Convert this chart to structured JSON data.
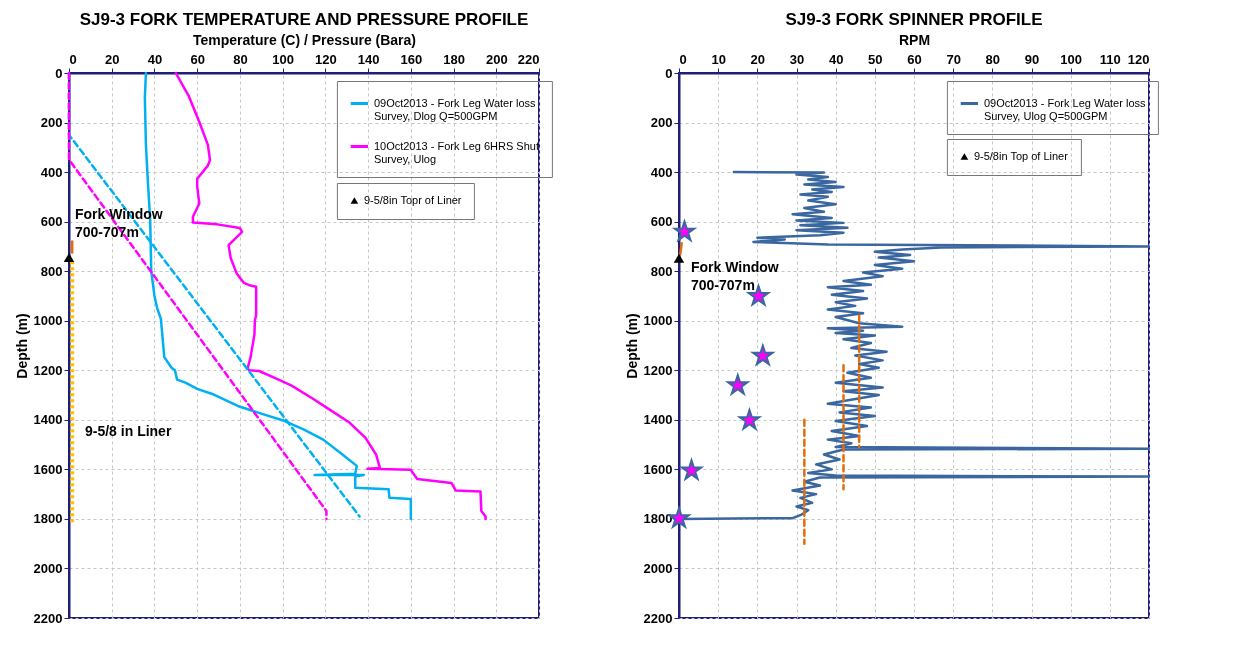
{
  "chart_data": [
    {
      "type": "line",
      "title": "SJ9-3 FORK TEMPERATURE AND PRESSURE PROFILE",
      "xlabel": "Temperature (C) / Pressure (Bara)",
      "ylabel": "Depth (m)",
      "xlim": [
        0,
        220
      ],
      "xticks": [
        0,
        20,
        40,
        60,
        80,
        100,
        120,
        140,
        160,
        180,
        200,
        220
      ],
      "ylim": [
        2200,
        0
      ],
      "yticks": [
        0,
        200,
        400,
        600,
        800,
        1000,
        1200,
        1400,
        1600,
        1800,
        2000,
        2200
      ],
      "grid": true,
      "legend": "top right",
      "series": [
        {
          "name": "09Oct2013 - Fork Leg Water loss Survey, Dlog Q=500GPM",
          "color": "#00b0f0",
          "x": [
            36,
            35.5,
            36,
            37,
            38,
            38.5,
            40,
            41.3,
            43,
            44.6,
            48,
            49.6,
            50.6,
            54.5,
            60,
            67.8,
            79,
            90,
            101,
            110,
            119,
            128,
            134.7,
            134,
            115,
            138,
            134,
            134,
            149.6,
            150,
            160,
            160
          ],
          "values": [
            0,
            100,
            290,
            450,
            595,
            800,
            900,
            950,
            992,
            1147,
            1190,
            1200,
            1238,
            1250,
            1275,
            1298,
            1344,
            1375,
            1405,
            1440,
            1480,
            1540,
            1586,
            1618,
            1623,
            1623,
            1628,
            1674,
            1680,
            1715,
            1720,
            1800
          ]
        },
        {
          "name": "10Oct2013 - Fork Leg 6HRS Shut Survey, Ulog",
          "color": "#ff00ff",
          "x": [
            50,
            56,
            61,
            65,
            66,
            65,
            60,
            60,
            61,
            58,
            58,
            69.4,
            80,
            81,
            74.7,
            75.7,
            78.5,
            81.8,
            85,
            87.6,
            87.6,
            87,
            86.8,
            85,
            83.6,
            84.3,
            89,
            96,
            104,
            114,
            122,
            131.4,
            138.8,
            143.8,
            145.5,
            139.7,
            160,
            163,
            179,
            181,
            192.6,
            193,
            195,
            195
          ],
          "values": [
            0,
            92,
            198,
            290,
            351,
            374,
            427,
            458,
            527,
            580,
            603,
            611,
            626,
            641,
            695,
            748,
            809,
            847,
            858,
            863,
            977,
            1000,
            1056,
            1147,
            1192,
            1200,
            1203,
            1230,
            1261,
            1314,
            1359,
            1412,
            1473,
            1541,
            1594,
            1598,
            1602,
            1639,
            1655,
            1685,
            1689,
            1768,
            1790,
            1800
          ]
        },
        {
          "color": "#00b0f0",
          "line_style": "dashed",
          "x": [
            0,
            0,
            136
          ],
          "values": [
            0,
            250,
            1790
          ]
        },
        {
          "color": "#ff00ff",
          "line_style": "dashed",
          "x": [
            0,
            0,
            120.5,
            120.5
          ],
          "values": [
            0,
            350,
            1768,
            1800
          ]
        },
        {
          "color": "#e46c0a",
          "x": [
            1.5,
            1.5
          ],
          "values": [
            680,
            725
          ]
        },
        {
          "color": "#ffc000",
          "line_style": "dotted",
          "x": [
            1.5,
            1.5
          ],
          "values": [
            760,
            1815
          ]
        },
        {
          "name": "9-5/8in Topr of Liner",
          "type": "scatter",
          "marker": "triangle",
          "color": "#000000",
          "x": [
            0
          ],
          "values": [
            745
          ]
        }
      ],
      "annotations": [
        "Fork Window\n700-707m",
        "9-5/8 in Liner"
      ]
    },
    {
      "type": "line",
      "title": "SJ9-3 FORK SPINNER  PROFILE",
      "xlabel": "RPM",
      "ylabel": "Depth (m)",
      "xlim": [
        0,
        120
      ],
      "xticks": [
        0,
        10,
        20,
        30,
        40,
        50,
        60,
        70,
        80,
        90,
        100,
        110,
        120
      ],
      "ylim": [
        2200,
        0
      ],
      "yticks": [
        0,
        200,
        400,
        600,
        800,
        1000,
        1200,
        1400,
        1600,
        1800,
        2000,
        2200
      ],
      "grid": true,
      "legend": "top right",
      "series": [
        {
          "name": "09Oct2013 - Fork Leg Water loss Survey, Ulog Q=500GPM",
          "color": "#3a67a0",
          "x": [
            14,
            37,
            30,
            38,
            33,
            40,
            32,
            42,
            34,
            39,
            31,
            38,
            33,
            40,
            32,
            37,
            29,
            39,
            30,
            42,
            31,
            43,
            30,
            42,
            36,
            20,
            27,
            19,
            38,
            120,
            67,
            57,
            50,
            59,
            51,
            60,
            50,
            57,
            47,
            52,
            42,
            49,
            38,
            47,
            39,
            48,
            40,
            45,
            38,
            47,
            40,
            46,
            57,
            38,
            47,
            40,
            50,
            42,
            49,
            44,
            53,
            45,
            52,
            46,
            51,
            43,
            49,
            40,
            52,
            42,
            51,
            38,
            49,
            41,
            50,
            40,
            48,
            39,
            46,
            38,
            44,
            40,
            120,
            42,
            37,
            41,
            35,
            39,
            33,
            40,
            120,
            36,
            32,
            36,
            29,
            35,
            31,
            34,
            30,
            33,
            31,
            29,
            0
          ],
          "values": [
            400,
            402,
            410,
            420,
            430,
            440,
            450,
            460,
            470,
            480,
            490,
            500,
            515,
            530,
            545,
            560,
            570,
            585,
            595,
            605,
            615,
            625,
            635,
            645,
            655,
            665,
            672,
            682,
            692,
            700,
            704,
            712,
            722,
            735,
            745,
            760,
            775,
            790,
            805,
            820,
            840,
            855,
            865,
            880,
            895,
            910,
            925,
            940,
            955,
            970,
            985,
            1010,
            1024,
            1030,
            1040,
            1050,
            1060,
            1075,
            1090,
            1110,
            1125,
            1140,
            1160,
            1175,
            1190,
            1210,
            1230,
            1250,
            1270,
            1285,
            1300,
            1335,
            1350,
            1370,
            1385,
            1405,
            1425,
            1445,
            1465,
            1480,
            1495,
            1510,
            1517,
            1520,
            1540,
            1560,
            1580,
            1600,
            1615,
            1625,
            1629,
            1633,
            1650,
            1665,
            1685,
            1700,
            1715,
            1735,
            1750,
            1765,
            1785,
            1797,
            1800
          ]
        },
        {
          "color": "#e46c0a",
          "x": [
            0.7,
            0.3
          ],
          "values": [
            687,
            733
          ]
        },
        {
          "color": "#e46c0a",
          "line_style": "dashed",
          "x": [
            46,
            46
          ],
          "values": [
            980,
            1510
          ]
        },
        {
          "color": "#e46c0a",
          "line_style": "dashed",
          "x": [
            42,
            42
          ],
          "values": [
            1180,
            1680
          ]
        },
        {
          "color": "#e46c0a",
          "line_style": "dashed",
          "x": [
            32,
            32
          ],
          "values": [
            1400,
            1900
          ]
        },
        {
          "type": "scatter",
          "marker": "star",
          "color": "#ff00ff",
          "x": [
            1.4,
            20.3,
            21.4,
            15,
            18,
            3.2,
            0
          ],
          "values": [
            641,
            901,
            1142,
            1261,
            1402,
            1605,
            1798
          ]
        },
        {
          "name": "9-5/8in Top of Liner",
          "type": "scatter",
          "marker": "triangle",
          "color": "#000000",
          "x": [
            0
          ],
          "values": [
            748
          ]
        }
      ],
      "annotations": [
        "Fork Window\n700-707m"
      ]
    }
  ]
}
